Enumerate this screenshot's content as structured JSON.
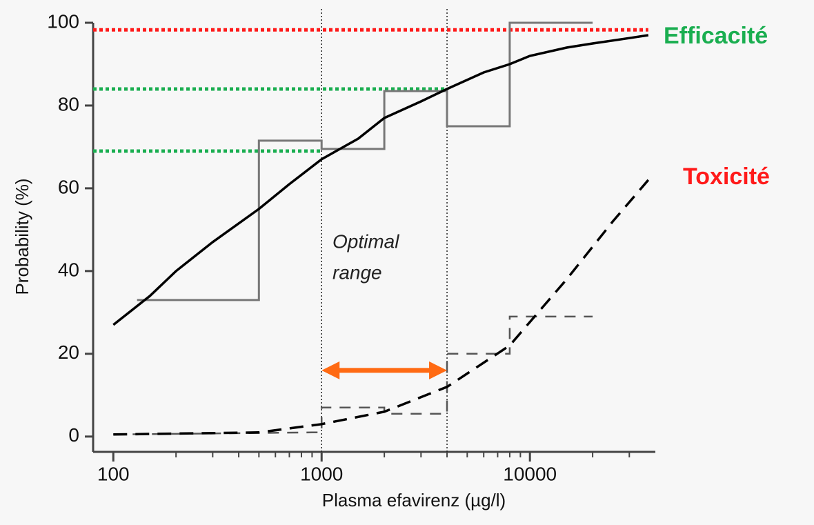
{
  "chart_data": {
    "type": "line",
    "xlabel": "Plasma  efavirenz (µg/l)",
    "ylabel": "Probability (%)",
    "xscale": "log",
    "xlim": [
      80,
      40000
    ],
    "ylim": [
      -3.7,
      100
    ],
    "xticks": [
      100,
      1000,
      10000
    ],
    "minor_xticks": [
      200,
      300,
      400,
      500,
      600,
      700,
      800,
      900,
      2000,
      3000,
      4000,
      5000,
      6000,
      7000,
      8000,
      9000,
      20000,
      30000
    ],
    "yticks": [
      0,
      20,
      40,
      60,
      80,
      100
    ],
    "series": [
      {
        "color": "#777777",
        "style": "step",
        "x": [
          130,
          500,
          500,
          1000,
          1000,
          2000,
          2000,
          4000,
          4000,
          8000,
          8000,
          20000
        ],
        "values": [
          33,
          33,
          71.5,
          71.5,
          69.5,
          69.5,
          83.5,
          83.5,
          75,
          75,
          100,
          100
        ]
      },
      {
        "color": "#000000",
        "style": "solid",
        "x": [
          100,
          150,
          200,
          300,
          500,
          700,
          1000,
          1500,
          2000,
          3000,
          4000,
          6000,
          8000,
          10000,
          15000,
          20000,
          30000,
          37000
        ],
        "values": [
          27,
          34,
          40,
          47,
          55,
          61,
          67,
          72,
          77,
          81,
          84,
          88,
          90,
          92,
          94,
          95,
          96.3,
          97
        ]
      },
      {
        "color": "#555555",
        "style": "dashed-step",
        "x": [
          100,
          900,
          1000,
          1000,
          2000,
          2000,
          4000,
          4000,
          8000,
          8000,
          20000
        ],
        "values": [
          0.5,
          1,
          1,
          7,
          7,
          5.5,
          5.5,
          20,
          20,
          29,
          29
        ]
      },
      {
        "color": "#000000",
        "style": "dashed",
        "x": [
          100,
          500,
          1000,
          2000,
          4000,
          8000,
          15000,
          25000,
          37000
        ],
        "values": [
          0.5,
          1,
          3,
          6,
          12,
          22,
          38,
          52,
          62
        ]
      }
    ],
    "reference_lines": [
      {
        "value": 98.3,
        "span": [
          80,
          37000
        ],
        "color": "#ff1a1a"
      },
      {
        "value": 84,
        "span": [
          80,
          4000
        ],
        "color": "#1aae50"
      },
      {
        "value": 69,
        "span": [
          80,
          1000
        ],
        "color": "#1aae50"
      }
    ],
    "vlines": [
      1000,
      4000
    ],
    "range_arrow": {
      "from": 1000,
      "to": 4000,
      "value": 16,
      "color": "#ff6a13"
    },
    "annotations": [
      {
        "text": "Efficacité",
        "color": "#1aae50"
      },
      {
        "text": "Toxicité",
        "color": "#ff1a1a"
      },
      {
        "text": "Optimal",
        "color": "#222222"
      },
      {
        "text": "range",
        "color": "#222222"
      }
    ]
  }
}
